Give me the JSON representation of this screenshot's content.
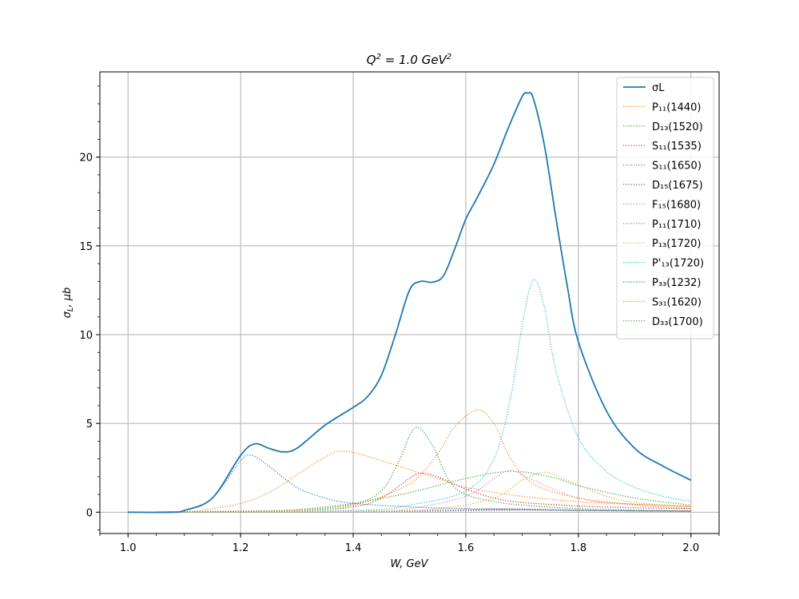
{
  "chart_data": {
    "type": "line",
    "title": "Q² = 1.0 GeV²",
    "xlabel": "W, GeV",
    "ylabel": "σL, μb",
    "xlim": [
      0.95,
      2.05
    ],
    "ylim": [
      -1.2,
      24.8
    ],
    "x_ticks": [
      1.0,
      1.2,
      1.4,
      1.6,
      1.8,
      2.0
    ],
    "x_tick_labels": [
      "1.0",
      "1.2",
      "1.4",
      "1.6",
      "1.8",
      "2.0"
    ],
    "y_ticks": [
      0,
      5,
      10,
      15,
      20
    ],
    "y_tick_labels": [
      "0",
      "5",
      "10",
      "15",
      "20"
    ],
    "grid": true,
    "legend_position": "top-right",
    "series": [
      {
        "name": "σL",
        "color": "#1f77b4",
        "style": "solid",
        "x": [
          1.0,
          1.075,
          1.1,
          1.15,
          1.2,
          1.225,
          1.25,
          1.275,
          1.3,
          1.35,
          1.4,
          1.425,
          1.45,
          1.475,
          1.5,
          1.52,
          1.54,
          1.56,
          1.58,
          1.6,
          1.62,
          1.65,
          1.675,
          1.7,
          1.71,
          1.72,
          1.74,
          1.76,
          1.78,
          1.8,
          1.85,
          1.9,
          1.95,
          2.0
        ],
        "y": [
          0,
          0.0,
          0.1,
          0.8,
          3.2,
          3.85,
          3.6,
          3.4,
          3.6,
          4.9,
          5.9,
          6.5,
          7.7,
          10.0,
          12.5,
          13.0,
          12.95,
          13.3,
          14.8,
          16.5,
          17.7,
          19.6,
          21.6,
          23.4,
          23.6,
          23.3,
          20.6,
          16.6,
          12.8,
          9.6,
          5.7,
          3.6,
          2.6,
          1.8
        ]
      },
      {
        "name": "P₁₁(1440)",
        "color": "#ff7f0e",
        "style": "dotted",
        "x": [
          1.0,
          1.1,
          1.15,
          1.2,
          1.25,
          1.3,
          1.35,
          1.38,
          1.42,
          1.45,
          1.5,
          1.55,
          1.6,
          1.7,
          1.8,
          1.9,
          2.0
        ],
        "y": [
          0,
          0.02,
          0.2,
          0.5,
          1.1,
          2.1,
          3.1,
          3.45,
          3.2,
          2.9,
          2.4,
          1.9,
          1.4,
          0.9,
          0.6,
          0.45,
          0.35
        ]
      },
      {
        "name": "D₁₃(1520)",
        "color": "#2ca02c",
        "style": "dotted",
        "x": [
          1.0,
          1.2,
          1.3,
          1.4,
          1.45,
          1.48,
          1.51,
          1.54,
          1.57,
          1.6,
          1.65,
          1.7,
          1.8,
          1.9,
          2.0
        ],
        "y": [
          0,
          0.05,
          0.1,
          0.45,
          1.2,
          2.8,
          4.75,
          3.8,
          1.8,
          1.0,
          0.6,
          0.4,
          0.2,
          0.12,
          0.08
        ]
      },
      {
        "name": "S₁₁(1535)",
        "color": "#d62728",
        "style": "dotted",
        "x": [
          1.0,
          1.3,
          1.4,
          1.45,
          1.5,
          1.52,
          1.55,
          1.6,
          1.65,
          1.7,
          1.8,
          1.9,
          2.0
        ],
        "y": [
          0,
          0.1,
          0.3,
          0.8,
          1.9,
          2.2,
          2.0,
          1.3,
          0.8,
          0.55,
          0.35,
          0.25,
          0.2
        ]
      },
      {
        "name": "S₁₁(1650)",
        "color": "#9467bd",
        "style": "dotted",
        "x": [
          1.0,
          1.3,
          1.5,
          1.6,
          1.65,
          1.7,
          1.8,
          1.9,
          2.0
        ],
        "y": [
          0,
          0.02,
          0.1,
          0.15,
          0.2,
          0.18,
          0.12,
          0.08,
          0.05
        ]
      },
      {
        "name": "D₁₅(1675)",
        "color": "#8c564b",
        "style": "dotted",
        "x": [
          1.0,
          1.3,
          1.5,
          1.6,
          1.675,
          1.75,
          1.85,
          2.0
        ],
        "y": [
          0,
          0.01,
          0.05,
          0.1,
          0.15,
          0.12,
          0.08,
          0.05
        ]
      },
      {
        "name": "F₁₅(1680)",
        "color": "#e377c2",
        "style": "dotted",
        "x": [
          1.0,
          1.4,
          1.5,
          1.6,
          1.65,
          1.68,
          1.72,
          1.8,
          1.9,
          2.0
        ],
        "y": [
          0,
          0.05,
          0.2,
          0.9,
          1.9,
          2.35,
          1.8,
          0.8,
          0.4,
          0.2
        ]
      },
      {
        "name": "P₁₁(1710)",
        "color": "#7f7f7f",
        "style": "dotted",
        "x": [
          1.0,
          1.4,
          1.6,
          1.71,
          1.8,
          2.0
        ],
        "y": [
          0,
          0.02,
          0.08,
          0.12,
          0.1,
          0.06
        ]
      },
      {
        "name": "P₁₃(1720)",
        "color": "#bcbd22",
        "style": "dotted",
        "x": [
          1.0,
          1.4,
          1.55,
          1.65,
          1.7,
          1.74,
          1.78,
          1.85,
          1.9,
          2.0
        ],
        "y": [
          0,
          0.05,
          0.2,
          0.8,
          1.8,
          2.25,
          1.8,
          0.9,
          0.55,
          0.3
        ]
      },
      {
        "name": "P'₁₃(1720)",
        "color": "#17becf",
        "style": "dotted",
        "x": [
          1.0,
          1.4,
          1.5,
          1.6,
          1.65,
          1.68,
          1.7,
          1.72,
          1.74,
          1.76,
          1.8,
          1.85,
          1.9,
          1.95,
          2.0
        ],
        "y": [
          0,
          0.1,
          0.4,
          1.2,
          3.0,
          6.5,
          10.5,
          13.1,
          11.5,
          8.0,
          4.2,
          2.3,
          1.4,
          0.9,
          0.6
        ]
      },
      {
        "name": "P₃₃(1232)",
        "color": "#1f77b4",
        "style": "dotted",
        "x": [
          1.0,
          1.075,
          1.1,
          1.15,
          1.2,
          1.22,
          1.25,
          1.3,
          1.35,
          1.4,
          1.5,
          1.6,
          1.7,
          1.8,
          1.9,
          2.0
        ],
        "y": [
          0,
          0.0,
          0.1,
          0.8,
          2.9,
          3.2,
          2.6,
          1.4,
          0.8,
          0.5,
          0.3,
          0.2,
          0.15,
          0.1,
          0.08,
          0.05
        ]
      },
      {
        "name": "S₃₁(1620)",
        "color": "#ff7f0e",
        "style": "dotted",
        "x": [
          1.0,
          1.3,
          1.4,
          1.5,
          1.55,
          1.58,
          1.62,
          1.65,
          1.68,
          1.72,
          1.8,
          1.9,
          2.0
        ],
        "y": [
          0,
          0.1,
          0.4,
          1.6,
          3.3,
          4.8,
          5.75,
          5.0,
          3.0,
          1.6,
          0.8,
          0.45,
          0.3
        ]
      },
      {
        "name": "D₃₃(1700)",
        "color": "#2ca02c",
        "style": "dotted",
        "x": [
          1.0,
          1.2,
          1.3,
          1.4,
          1.5,
          1.6,
          1.68,
          1.75,
          1.8,
          1.9,
          2.0
        ],
        "y": [
          0,
          0.05,
          0.15,
          0.5,
          1.1,
          1.9,
          2.3,
          2.0,
          1.5,
          0.8,
          0.4
        ]
      }
    ]
  }
}
